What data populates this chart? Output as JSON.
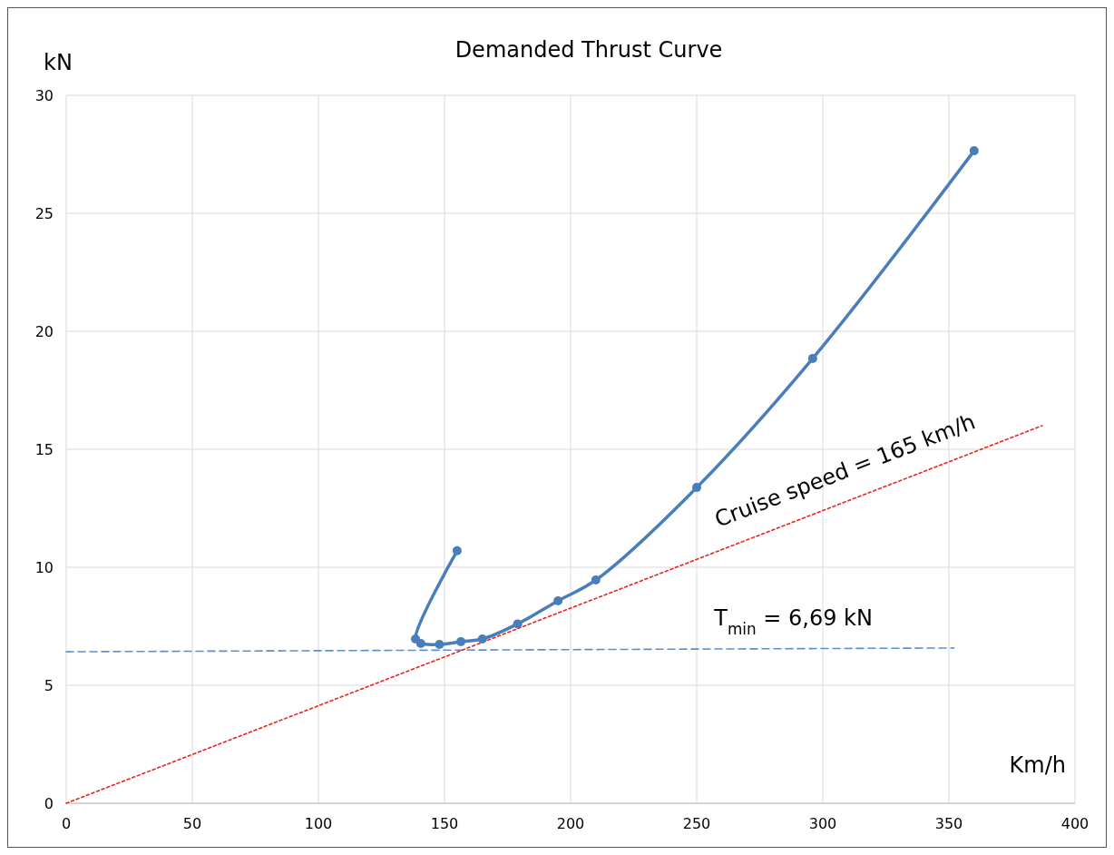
{
  "chart_data": {
    "type": "line",
    "title": "Demanded Thrust Curve",
    "xlabel": "Km/h",
    "ylabel": "kN",
    "xlim": [
      0,
      400
    ],
    "xticks": [
      0,
      50,
      100,
      150,
      200,
      250,
      300,
      350,
      400
    ],
    "ylim": [
      0,
      30
    ],
    "yticks": [
      0,
      5,
      10,
      15,
      20,
      25,
      30
    ],
    "grid": true,
    "series": [
      {
        "color": "#4a7ebb",
        "marker": "circle",
        "line_style": "solid",
        "x": [
          155,
          138.5,
          140.6,
          148,
          156.5,
          165,
          179,
          195,
          210,
          250,
          296,
          360
        ],
        "values": [
          10.7,
          6.96,
          6.77,
          6.73,
          6.85,
          6.96,
          7.6,
          8.58,
          9.46,
          13.38,
          18.85,
          27.65
        ]
      },
      {
        "color": "#e8251f",
        "marker": "none",
        "line_style": "dotted",
        "x": [
          0,
          387
        ],
        "values": [
          0,
          16
        ]
      },
      {
        "color": "#5b8fd0",
        "marker": "none",
        "line_style": "dashed",
        "x": [
          0,
          352
        ],
        "values": [
          6.42,
          6.58
        ]
      }
    ],
    "annotations": [
      "Cruise speed = 165 km/h",
      "T$_{min}$ = 6,69 kN"
    ]
  }
}
